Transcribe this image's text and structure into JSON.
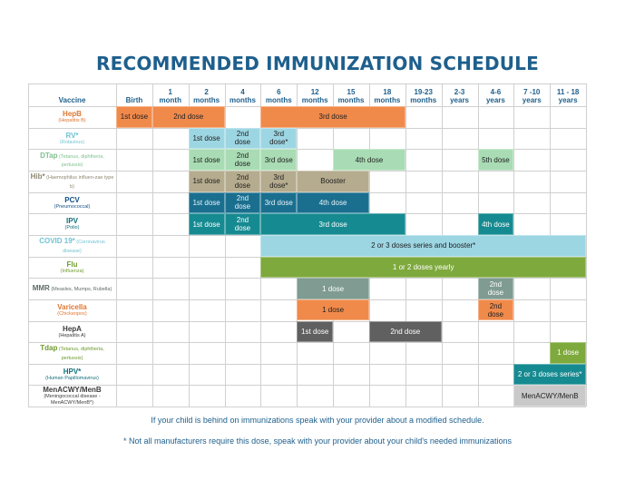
{
  "title": "RECOMMENDED IMMUNIZATION SCHEDULE",
  "vaccine_header": "Vaccine",
  "columns": [
    "Birth",
    "1\nmonth",
    "2\nmonths",
    "4\nmonths",
    "6\nmonths",
    "12\nmonths",
    "15\nmonths",
    "18\nmonths",
    "19-23\nmonths",
    "2-3\nyears",
    "4-6\nyears",
    "7 -10\nyears",
    "11 - 18\nyears"
  ],
  "colors": {
    "title": "#1e5f8c",
    "orange": "#f08a4b",
    "light_blue": "#9dd6e3",
    "light_green": "#a9dcb4",
    "tan": "#b5ab8e",
    "dark_blue": "#1a6f8f",
    "teal": "#168a91",
    "olive": "#7ea93d",
    "gray_green": "#7f9b92",
    "dark_gray": "#606060",
    "light_gray": "#c9c9c9"
  },
  "vaccines": [
    {
      "name": "HepB",
      "sub": "(Hepatitis B)",
      "color": "#e0762f"
    },
    {
      "name": "RV*",
      "sub": "(Rotavirus)",
      "color": "#6fc3d3"
    },
    {
      "name": "DTap",
      "inline": "(Tetanus, diphtheria, pertussis)",
      "color": "#7fc08e"
    },
    {
      "name": "Hib*",
      "inline": "(Haemophilus influen-zae type b)",
      "color": "#8f8670"
    },
    {
      "name": "PCV",
      "sub": "(Pneumococcal)",
      "color": "#134f86"
    },
    {
      "name": "IPV",
      "sub": "(Polio)",
      "color": "#0f6f7a"
    },
    {
      "name": "COVID 19*",
      "inline": "(Coronavirus disease)",
      "color": "#6fc3d3"
    },
    {
      "name": "Flu",
      "sub": "(Influenza)",
      "color": "#6f9a2d"
    },
    {
      "name": "MMR",
      "inline": "(Measles, Mumps, Rubella)",
      "color": "#5d6c68"
    },
    {
      "name": "Varicella",
      "sub": "(Chickenpox)",
      "color": "#e0762f"
    },
    {
      "name": "HepA",
      "sub": "(Hepatitis A)",
      "color": "#3b3b3b"
    },
    {
      "name": "Tdap",
      "inline": "(Tetanus, diphtheria, pertussis)",
      "color": "#6f9a2d"
    },
    {
      "name": "HPV*",
      "sub": "(Human Papillomavirus)",
      "color": "#0f6f7a"
    },
    {
      "name": "MenACWY/MenB",
      "sub": "(Meningococcal disease - MenACWY/MenB*)",
      "color": "#3b3b3b"
    }
  ],
  "cells": [
    {
      "row": 0,
      "start": 0,
      "span": 1,
      "text": "1st dose",
      "color": "orange"
    },
    {
      "row": 0,
      "start": 1,
      "span": 2,
      "text": "2nd dose",
      "color": "orange"
    },
    {
      "row": 0,
      "start": 4,
      "span": 4,
      "text": "3rd dose",
      "color": "orange"
    },
    {
      "row": 1,
      "start": 2,
      "span": 1,
      "text": "1st dose",
      "color": "light_blue"
    },
    {
      "row": 1,
      "start": 3,
      "span": 1,
      "text": "2nd\ndose",
      "color": "light_blue"
    },
    {
      "row": 1,
      "start": 4,
      "span": 1,
      "text": "3rd\ndose*",
      "color": "light_blue"
    },
    {
      "row": 2,
      "start": 2,
      "span": 1,
      "text": "1st dose",
      "color": "light_green"
    },
    {
      "row": 2,
      "start": 3,
      "span": 1,
      "text": "2nd\ndose",
      "color": "light_green"
    },
    {
      "row": 2,
      "start": 4,
      "span": 1,
      "text": "3rd dose",
      "color": "light_green"
    },
    {
      "row": 2,
      "start": 6,
      "span": 2,
      "text": "4th dose",
      "color": "light_green"
    },
    {
      "row": 2,
      "start": 10,
      "span": 1,
      "text": "5th dose",
      "color": "light_green"
    },
    {
      "row": 3,
      "start": 2,
      "span": 1,
      "text": "1st dose",
      "color": "tan"
    },
    {
      "row": 3,
      "start": 3,
      "span": 1,
      "text": "2nd\ndose",
      "color": "tan"
    },
    {
      "row": 3,
      "start": 4,
      "span": 1,
      "text": "3rd\ndose*",
      "color": "tan"
    },
    {
      "row": 3,
      "start": 5,
      "span": 2,
      "text": "Booster",
      "color": "tan"
    },
    {
      "row": 4,
      "start": 2,
      "span": 1,
      "text": "1st dose",
      "color": "dark_blue"
    },
    {
      "row": 4,
      "start": 3,
      "span": 1,
      "text": "2nd\ndose",
      "color": "dark_blue"
    },
    {
      "row": 4,
      "start": 4,
      "span": 1,
      "text": "3rd dose",
      "color": "dark_blue"
    },
    {
      "row": 4,
      "start": 5,
      "span": 2,
      "text": "4th dose",
      "color": "dark_blue"
    },
    {
      "row": 5,
      "start": 2,
      "span": 1,
      "text": "1st dose",
      "color": "teal"
    },
    {
      "row": 5,
      "start": 3,
      "span": 1,
      "text": "2nd\ndose",
      "color": "teal"
    },
    {
      "row": 5,
      "start": 4,
      "span": 4,
      "text": "3rd dose",
      "color": "teal"
    },
    {
      "row": 5,
      "start": 10,
      "span": 1,
      "text": "4th dose",
      "color": "teal"
    },
    {
      "row": 6,
      "start": 4,
      "span": 9,
      "text": "2 or 3 doses series and booster*",
      "color": "light_blue"
    },
    {
      "row": 7,
      "start": 4,
      "span": 9,
      "text": "1 or 2 doses yearly",
      "color": "olive"
    },
    {
      "row": 8,
      "start": 5,
      "span": 2,
      "text": "1 dose",
      "color": "gray_green"
    },
    {
      "row": 8,
      "start": 10,
      "span": 1,
      "text": "2nd\ndose",
      "color": "gray_green"
    },
    {
      "row": 9,
      "start": 5,
      "span": 2,
      "text": "1 dose",
      "color": "orange"
    },
    {
      "row": 9,
      "start": 10,
      "span": 1,
      "text": "2nd\ndose",
      "color": "orange"
    },
    {
      "row": 10,
      "start": 5,
      "span": 1,
      "text": "1st dose",
      "color": "dark_gray"
    },
    {
      "row": 10,
      "start": 7,
      "span": 2,
      "text": "2nd dose",
      "color": "dark_gray"
    },
    {
      "row": 11,
      "start": 12,
      "span": 1,
      "text": "1 dose",
      "color": "olive"
    },
    {
      "row": 12,
      "start": 11,
      "span": 2,
      "text": "2 or 3 doses series*",
      "color": "teal"
    },
    {
      "row": 13,
      "start": 11,
      "span": 2,
      "text": "MenACWY/MenB",
      "color": "light_gray"
    }
  ],
  "footer": {
    "line1": "If your child is behind on immunizations speak with your provider about a modified schedule.",
    "line2": "* Not all manufacturers require this dose, speak with your provider about your child's needed immunizations"
  }
}
